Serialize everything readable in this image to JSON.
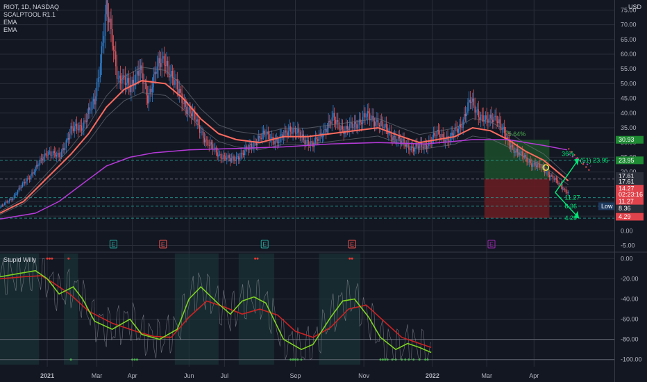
{
  "legend": {
    "symbol": "RIOT, 1D, NASDAQ",
    "indicators": [
      "SCALPTOOL R1.1",
      "EMA",
      "EMA"
    ],
    "oscillator": "Stupid Willy"
  },
  "currency": "USD",
  "colors": {
    "up": "#2f7fd1",
    "down": "#e0575e",
    "ema_fast": "#ff6b5f",
    "ema_slow": "#b63ad9",
    "wr_green": "#7ed321",
    "wr_red": "#cc2222",
    "target_zone": "#1d4d2a",
    "stop_zone": "#6b1c22"
  },
  "chart_data": [
    {
      "type": "candlestick",
      "title": "RIOT, 1D, NASDAQ",
      "x_ticks": [
        "2021",
        "Mar",
        "Apr",
        "Jun",
        "Jul",
        "Sep",
        "Nov",
        "2022",
        "Mar",
        "Apr"
      ],
      "y_ticks": [
        75,
        70,
        65,
        60,
        55,
        50,
        45,
        40,
        35,
        30,
        25,
        20,
        15,
        10,
        5,
        0,
        -5
      ],
      "ylim": [
        -7,
        77
      ],
      "price_path": [
        [
          0,
          8
        ],
        [
          10,
          11
        ],
        [
          20,
          16
        ],
        [
          30,
          21
        ],
        [
          40,
          27
        ],
        [
          50,
          25
        ],
        [
          60,
          34
        ],
        [
          70,
          36
        ],
        [
          80,
          44
        ],
        [
          85,
          58
        ],
        [
          90,
          75
        ],
        [
          95,
          65
        ],
        [
          100,
          52
        ],
        [
          110,
          49
        ],
        [
          118,
          55
        ],
        [
          125,
          45
        ],
        [
          132,
          55
        ],
        [
          140,
          58
        ],
        [
          150,
          48
        ],
        [
          158,
          42
        ],
        [
          165,
          38
        ],
        [
          175,
          30
        ],
        [
          185,
          26
        ],
        [
          195,
          24
        ],
        [
          205,
          26
        ],
        [
          215,
          30
        ],
        [
          225,
          33
        ],
        [
          235,
          30
        ],
        [
          245,
          35
        ],
        [
          255,
          32
        ],
        [
          265,
          29
        ],
        [
          272,
          33
        ],
        [
          282,
          38
        ],
        [
          292,
          34
        ],
        [
          300,
          36
        ],
        [
          310,
          39
        ],
        [
          320,
          37
        ],
        [
          330,
          33
        ],
        [
          340,
          30
        ],
        [
          350,
          28
        ],
        [
          360,
          29
        ],
        [
          370,
          33
        ],
        [
          380,
          31
        ],
        [
          390,
          36
        ],
        [
          398,
          44
        ],
        [
          405,
          40
        ],
        [
          412,
          37
        ],
        [
          420,
          39
        ],
        [
          430,
          30
        ],
        [
          440,
          26
        ],
        [
          450,
          23
        ],
        [
          460,
          21
        ],
        [
          468,
          18
        ],
        [
          475,
          15
        ],
        [
          481,
          13
        ]
      ],
      "ema_fast_path": [
        [
          0,
          6
        ],
        [
          20,
          10
        ],
        [
          40,
          18
        ],
        [
          60,
          26
        ],
        [
          75,
          33
        ],
        [
          90,
          42
        ],
        [
          105,
          48
        ],
        [
          120,
          51
        ],
        [
          140,
          50
        ],
        [
          155,
          45
        ],
        [
          170,
          38
        ],
        [
          185,
          33
        ],
        [
          200,
          31
        ],
        [
          220,
          30
        ],
        [
          240,
          32
        ],
        [
          260,
          32
        ],
        [
          280,
          33
        ],
        [
          300,
          34
        ],
        [
          320,
          35
        ],
        [
          340,
          32
        ],
        [
          355,
          30
        ],
        [
          370,
          31
        ],
        [
          385,
          32
        ],
        [
          400,
          35
        ],
        [
          415,
          34
        ],
        [
          430,
          31
        ],
        [
          445,
          27
        ],
        [
          460,
          24
        ],
        [
          475,
          19
        ],
        [
          481,
          17
        ]
      ],
      "ema_slow_path": [
        [
          0,
          4
        ],
        [
          30,
          6
        ],
        [
          50,
          10
        ],
        [
          70,
          16
        ],
        [
          90,
          22
        ],
        [
          110,
          25
        ],
        [
          130,
          26.5
        ],
        [
          160,
          27.5
        ],
        [
          200,
          28
        ],
        [
          240,
          28.5
        ],
        [
          280,
          29.5
        ],
        [
          320,
          30
        ],
        [
          360,
          29.5
        ],
        [
          400,
          31
        ],
        [
          430,
          31
        ],
        [
          460,
          29
        ],
        [
          480,
          27.5
        ]
      ],
      "position": {
        "entry": 17.61,
        "target": 30.93,
        "stop": 4.29,
        "target_pct": "75.64%",
        "entry_marker": "23.95",
        "arrow_label": "36%",
        "bar_label": "(51) 23.95"
      },
      "lines": [
        23.95,
        17.61,
        11.27,
        8.36,
        4.29
      ],
      "levels_text": [
        "11.27",
        "8.36",
        "4.29"
      ],
      "price_badges": [
        {
          "value": "30.93",
          "color": "#1e8a33",
          "price": 30.93
        },
        {
          "value": "23.95",
          "color": "#1e8a33",
          "price": 23.95
        },
        {
          "value": "17.61",
          "color": "#2a2e39",
          "price": 18.6
        },
        {
          "value": "17.61",
          "color": "#2a2e39",
          "price": 16.7
        },
        {
          "value": "14.27",
          "color": "#e0434b",
          "price": 14.3
        },
        {
          "value": "02:23:16",
          "color": "#e0434b",
          "price": 12.4
        },
        {
          "value": "11.27",
          "color": "#e0434b",
          "price": 10.0
        },
        {
          "value": "8.36",
          "color": "#2a2e39",
          "price": 7.6
        },
        {
          "value": "4.29",
          "color": "#e0434b",
          "price": 4.8
        }
      ],
      "low_label": "Low",
      "earnings": [
        {
          "label": "E",
          "x": 96,
          "color": "#26a69a"
        },
        {
          "label": "E",
          "x": 138,
          "color": "#ef5350"
        },
        {
          "label": "E",
          "x": 224,
          "color": "#26a69a"
        },
        {
          "label": "E",
          "x": 298,
          "color": "#ef5350"
        },
        {
          "label": "E",
          "x": 416,
          "color": "#9c27b0"
        }
      ]
    },
    {
      "type": "line",
      "title": "Stupid Willy",
      "y_ticks": [
        0,
        -20,
        -40,
        -60,
        -80,
        -100
      ],
      "ylim": [
        -105,
        5
      ],
      "green_path": [
        [
          0,
          -18
        ],
        [
          15,
          -15
        ],
        [
          30,
          -12
        ],
        [
          40,
          -20
        ],
        [
          50,
          -35
        ],
        [
          62,
          -28
        ],
        [
          70,
          -40
        ],
        [
          80,
          -62
        ],
        [
          95,
          -70
        ],
        [
          110,
          -60
        ],
        [
          120,
          -75
        ],
        [
          135,
          -80
        ],
        [
          150,
          -70
        ],
        [
          160,
          -40
        ],
        [
          170,
          -28
        ],
        [
          185,
          -45
        ],
        [
          195,
          -55
        ],
        [
          205,
          -42
        ],
        [
          215,
          -38
        ],
        [
          225,
          -44
        ],
        [
          240,
          -80
        ],
        [
          255,
          -90
        ],
        [
          265,
          -85
        ],
        [
          280,
          -58
        ],
        [
          290,
          -42
        ],
        [
          300,
          -40
        ],
        [
          312,
          -58
        ],
        [
          322,
          -78
        ],
        [
          335,
          -90
        ],
        [
          345,
          -84
        ],
        [
          355,
          -88
        ],
        [
          365,
          -93
        ]
      ],
      "red_path": [
        [
          0,
          -20
        ],
        [
          20,
          -18
        ],
        [
          35,
          -17
        ],
        [
          45,
          -24
        ],
        [
          60,
          -36
        ],
        [
          75,
          -52
        ],
        [
          95,
          -64
        ],
        [
          115,
          -72
        ],
        [
          130,
          -77
        ],
        [
          145,
          -78
        ],
        [
          160,
          -58
        ],
        [
          175,
          -42
        ],
        [
          190,
          -48
        ],
        [
          205,
          -55
        ],
        [
          220,
          -50
        ],
        [
          235,
          -56
        ],
        [
          250,
          -72
        ],
        [
          265,
          -78
        ],
        [
          280,
          -68
        ],
        [
          295,
          -50
        ],
        [
          310,
          -46
        ],
        [
          325,
          -62
        ],
        [
          340,
          -78
        ],
        [
          355,
          -84
        ],
        [
          365,
          -88
        ]
      ],
      "shaded_spans": [
        [
          0,
          33
        ],
        [
          54,
          66
        ],
        [
          148,
          185
        ],
        [
          202,
          232
        ],
        [
          270,
          305
        ]
      ]
    }
  ]
}
